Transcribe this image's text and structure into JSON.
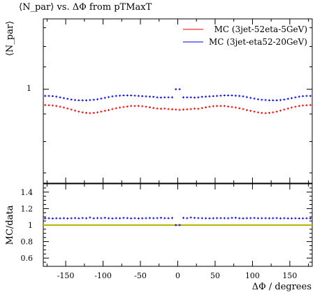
{
  "chart_data": {
    "type": "scatter",
    "title": "⟨N_par⟩ vs. ΔΦ from pTMaxT",
    "xlabel": "ΔΦ / degrees",
    "ylabel": "⟨N_par⟩",
    "ratio_ylabel": "MC/data",
    "xlim": [
      -180,
      180
    ],
    "ylim": [
      0.67,
      1.35
    ],
    "yscale": "log",
    "ratio_ylim": [
      0.5,
      1.5
    ],
    "x_ticks": [
      "-150",
      "-100",
      "-50",
      "0",
      "50",
      "100",
      "150"
    ],
    "y_ticks": [
      "1"
    ],
    "ratio_y_ticks": [
      "0.6",
      "0.8",
      "1",
      "1.2",
      "1.4"
    ],
    "legend_position": "top-right",
    "series": [
      {
        "name": "MC (3jet-52eta-5GeV)",
        "color": "#ee0000",
        "x": [
          -177.5,
          -172.5,
          -167.5,
          -162.5,
          -157.5,
          -152.5,
          -147.5,
          -142.5,
          -137.5,
          -132.5,
          -127.5,
          -122.5,
          -117.5,
          -112.5,
          -107.5,
          -102.5,
          -97.5,
          -92.5,
          -87.5,
          -82.5,
          -77.5,
          -72.5,
          -67.5,
          -62.5,
          -57.5,
          -52.5,
          -47.5,
          -42.5,
          -37.5,
          -32.5,
          -27.5,
          -22.5,
          -17.5,
          -12.5,
          -7.5,
          -2.5,
          2.5,
          7.5,
          12.5,
          17.5,
          22.5,
          27.5,
          32.5,
          37.5,
          42.5,
          47.5,
          52.5,
          57.5,
          62.5,
          67.5,
          72.5,
          77.5,
          82.5,
          87.5,
          92.5,
          97.5,
          102.5,
          107.5,
          112.5,
          117.5,
          122.5,
          127.5,
          132.5,
          137.5,
          142.5,
          147.5,
          152.5,
          157.5,
          162.5,
          167.5,
          172.5,
          177.5
        ],
        "values": [
          0.935,
          0.934,
          0.933,
          0.931,
          0.928,
          0.925,
          0.921,
          0.917,
          0.913,
          0.909,
          0.906,
          0.904,
          0.903,
          0.904,
          0.906,
          0.909,
          0.912,
          0.915,
          0.919,
          0.922,
          0.925,
          0.927,
          0.929,
          0.931,
          0.931,
          0.931,
          0.93,
          0.928,
          0.926,
          0.923,
          0.921,
          0.92,
          0.921,
          0.919,
          0.918,
          0.917,
          0.916,
          0.917,
          0.918,
          0.919,
          0.921,
          0.92,
          0.923,
          0.926,
          0.928,
          0.93,
          0.931,
          0.931,
          0.931,
          0.929,
          0.927,
          0.925,
          0.922,
          0.919,
          0.915,
          0.912,
          0.909,
          0.906,
          0.904,
          0.903,
          0.904,
          0.906,
          0.909,
          0.913,
          0.917,
          0.921,
          0.925,
          0.928,
          0.931,
          0.933,
          0.934,
          0.935
        ]
      },
      {
        "name": "MC (3jet-eta52-20GeV)",
        "color": "#0000ee",
        "x": [
          -177.5,
          -172.5,
          -167.5,
          -162.5,
          -157.5,
          -152.5,
          -147.5,
          -142.5,
          -137.5,
          -132.5,
          -127.5,
          -122.5,
          -117.5,
          -112.5,
          -107.5,
          -102.5,
          -97.5,
          -92.5,
          -87.5,
          -82.5,
          -77.5,
          -72.5,
          -67.5,
          -62.5,
          -57.5,
          -52.5,
          -47.5,
          -42.5,
          -37.5,
          -32.5,
          -27.5,
          -22.5,
          -17.5,
          -12.5,
          -7.5,
          -2.5,
          2.5,
          7.5,
          12.5,
          17.5,
          22.5,
          27.5,
          32.5,
          37.5,
          42.5,
          47.5,
          52.5,
          57.5,
          62.5,
          67.5,
          72.5,
          77.5,
          82.5,
          87.5,
          92.5,
          97.5,
          102.5,
          107.5,
          112.5,
          117.5,
          122.5,
          127.5,
          132.5,
          137.5,
          142.5,
          147.5,
          152.5,
          157.5,
          162.5,
          167.5,
          172.5,
          177.5
        ],
        "values": [
          0.972,
          0.972,
          0.971,
          0.969,
          0.966,
          0.963,
          0.96,
          0.957,
          0.955,
          0.954,
          0.954,
          0.954,
          0.955,
          0.956,
          0.958,
          0.961,
          0.964,
          0.967,
          0.97,
          0.972,
          0.973,
          0.974,
          0.974,
          0.974,
          0.973,
          0.972,
          0.971,
          0.97,
          0.969,
          0.968,
          0.966,
          0.965,
          0.966,
          0.966,
          0.966,
          1.0,
          1.0,
          0.966,
          0.966,
          0.966,
          0.965,
          0.966,
          0.968,
          0.969,
          0.97,
          0.971,
          0.972,
          0.973,
          0.974,
          0.974,
          0.974,
          0.973,
          0.972,
          0.97,
          0.967,
          0.964,
          0.961,
          0.958,
          0.956,
          0.955,
          0.954,
          0.954,
          0.954,
          0.955,
          0.957,
          0.96,
          0.963,
          0.966,
          0.969,
          0.971,
          0.972,
          0.972
        ],
        "ratio": [
          1.082,
          1.083,
          1.081,
          1.083,
          1.082,
          1.084,
          1.081,
          1.083,
          1.085,
          1.082,
          1.086,
          1.083,
          1.092,
          1.082,
          1.085,
          1.084,
          1.088,
          1.083,
          1.081,
          1.084,
          1.083,
          1.087,
          1.085,
          1.082,
          1.084,
          1.081,
          1.083,
          1.084,
          1.086,
          1.084,
          1.085,
          1.088,
          1.084,
          1.083,
          1.086,
          1.0,
          1.0,
          1.087,
          1.084,
          1.092,
          1.087,
          1.085,
          1.084,
          1.083,
          1.082,
          1.083,
          1.085,
          1.085,
          1.084,
          1.083,
          1.087,
          1.088,
          1.083,
          1.082,
          1.084,
          1.085,
          1.086,
          1.083,
          1.084,
          1.084,
          1.083,
          1.084,
          1.085,
          1.082,
          1.084,
          1.082,
          1.082,
          1.083,
          1.081,
          1.082,
          1.083,
          1.081
        ]
      }
    ],
    "ratio_reference": {
      "value": 1.0,
      "color": "#b5b500"
    }
  }
}
